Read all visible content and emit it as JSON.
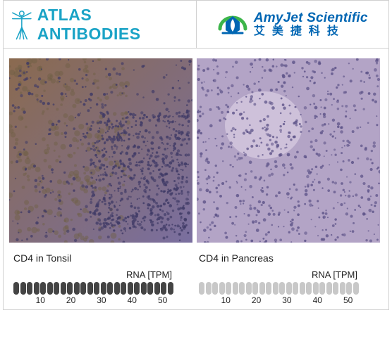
{
  "header": {
    "atlas_brand": "ATLAS ANTIBODIES",
    "atlas_color": "#1aa3c6",
    "amyjet_english": "AmyJet Scientific",
    "amyjet_chinese": "艾美捷科技",
    "amyjet_green": "#3db54a",
    "amyjet_blue": "#0066b3"
  },
  "panels": {
    "left": {
      "caption": "CD4 in Tonsil",
      "rna_label": "RNA [TPM]",
      "structure": "histology-ihc",
      "segment_count": 24,
      "segment_color": "#444444",
      "ticks": [
        {
          "label": "10",
          "pos_pct": 15
        },
        {
          "label": "20",
          "pos_pct": 32
        },
        {
          "label": "30",
          "pos_pct": 49
        },
        {
          "label": "40",
          "pos_pct": 66
        },
        {
          "label": "50",
          "pos_pct": 83
        }
      ],
      "image_svg": {
        "background_gradient_from": "#8a6a4f",
        "background_gradient_to": "#7a6fa0",
        "dot_color": "#3f3a66",
        "dot_color2": "#6e5f45",
        "brown_region": true
      }
    },
    "right": {
      "caption": "CD4 in Pancreas",
      "rna_label": "RNA [TPM]",
      "structure": "histology-ihc",
      "segment_count": 24,
      "segment_color": "#c8c8c8",
      "ticks": [
        {
          "label": "10",
          "pos_pct": 15
        },
        {
          "label": "20",
          "pos_pct": 32
        },
        {
          "label": "30",
          "pos_pct": 49
        },
        {
          "label": "40",
          "pos_pct": 66
        },
        {
          "label": "50",
          "pos_pct": 83
        }
      ],
      "image_svg": {
        "background_color": "#b3a4c6",
        "dot_color": "#5d5388",
        "light_patch_color": "#d2c7dd",
        "brown_region": false
      }
    }
  }
}
